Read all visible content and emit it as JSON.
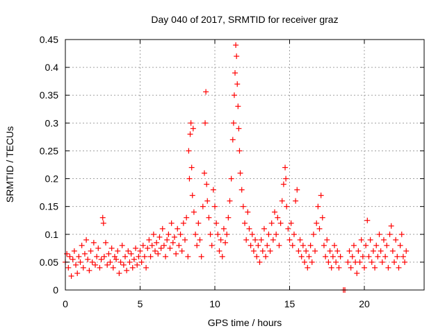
{
  "chart_data": {
    "type": "scatter",
    "title": "Day 040 of 2017, SRMTID for receiver graz",
    "xlabel": "GPS time / hours",
    "ylabel": "SRMTID / TECUs",
    "xlim": [
      0,
      24
    ],
    "ylim": [
      0,
      0.45
    ],
    "x_ticks": [
      0,
      5,
      10,
      15,
      20
    ],
    "x_tick_labels": [
      "0",
      "5",
      "10",
      "15",
      "20"
    ],
    "y_ticks": [
      0,
      0.05,
      0.1,
      0.15,
      0.2,
      0.25,
      0.3,
      0.35,
      0.4,
      0.45
    ],
    "y_tick_labels": [
      "0",
      "0.05",
      "0.1",
      "0.15",
      "0.2",
      "0.25",
      "0.3",
      "0.35",
      "0.4",
      "0.45"
    ],
    "grid": true,
    "marker": "+",
    "color": "#ff0000",
    "series": [
      {
        "name": "SRMTID",
        "points": [
          [
            0.0,
            0.05
          ],
          [
            0.1,
            0.065
          ],
          [
            0.2,
            0.04
          ],
          [
            0.3,
            0.06
          ],
          [
            0.4,
            0.025
          ],
          [
            0.5,
            0.055
          ],
          [
            0.6,
            0.07
          ],
          [
            0.7,
            0.045
          ],
          [
            0.8,
            0.03
          ],
          [
            0.9,
            0.06
          ],
          [
            1.0,
            0.05
          ],
          [
            1.1,
            0.08
          ],
          [
            1.2,
            0.04
          ],
          [
            1.3,
            0.065
          ],
          [
            1.4,
            0.09
          ],
          [
            1.5,
            0.055
          ],
          [
            1.6,
            0.035
          ],
          [
            1.7,
            0.07
          ],
          [
            1.8,
            0.05
          ],
          [
            1.9,
            0.085
          ],
          [
            2.0,
            0.045
          ],
          [
            2.1,
            0.06
          ],
          [
            2.2,
            0.075
          ],
          [
            2.3,
            0.04
          ],
          [
            2.4,
            0.055
          ],
          [
            2.5,
            0.13
          ],
          [
            2.55,
            0.12
          ],
          [
            2.6,
            0.06
          ],
          [
            2.7,
            0.085
          ],
          [
            2.8,
            0.045
          ],
          [
            2.9,
            0.065
          ],
          [
            3.0,
            0.05
          ],
          [
            3.1,
            0.075
          ],
          [
            3.2,
            0.04
          ],
          [
            3.3,
            0.06
          ],
          [
            3.4,
            0.055
          ],
          [
            3.5,
            0.07
          ],
          [
            3.6,
            0.03
          ],
          [
            3.7,
            0.05
          ],
          [
            3.8,
            0.08
          ],
          [
            3.9,
            0.045
          ],
          [
            4.0,
            0.06
          ],
          [
            4.1,
            0.035
          ],
          [
            4.2,
            0.07
          ],
          [
            4.3,
            0.05
          ],
          [
            4.4,
            0.065
          ],
          [
            4.5,
            0.04
          ],
          [
            4.6,
            0.055
          ],
          [
            4.7,
            0.075
          ],
          [
            4.8,
            0.045
          ],
          [
            4.9,
            0.06
          ],
          [
            5.0,
            0.07
          ],
          [
            5.1,
            0.05
          ],
          [
            5.2,
            0.08
          ],
          [
            5.3,
            0.06
          ],
          [
            5.4,
            0.04
          ],
          [
            5.5,
            0.075
          ],
          [
            5.6,
            0.09
          ],
          [
            5.7,
            0.06
          ],
          [
            5.8,
            0.08
          ],
          [
            5.9,
            0.1
          ],
          [
            6.0,
            0.07
          ],
          [
            6.1,
            0.085
          ],
          [
            6.2,
            0.065
          ],
          [
            6.3,
            0.095
          ],
          [
            6.4,
            0.075
          ],
          [
            6.5,
            0.11
          ],
          [
            6.6,
            0.08
          ],
          [
            6.7,
            0.06
          ],
          [
            6.8,
            0.09
          ],
          [
            6.9,
            0.1
          ],
          [
            7.0,
            0.075
          ],
          [
            7.1,
            0.12
          ],
          [
            7.2,
            0.085
          ],
          [
            7.3,
            0.095
          ],
          [
            7.4,
            0.065
          ],
          [
            7.5,
            0.11
          ],
          [
            7.6,
            0.08
          ],
          [
            7.7,
            0.1
          ],
          [
            7.8,
            0.07
          ],
          [
            7.9,
            0.12
          ],
          [
            8.0,
            0.09
          ],
          [
            8.1,
            0.13
          ],
          [
            8.2,
            0.06
          ],
          [
            8.25,
            0.25
          ],
          [
            8.3,
            0.2
          ],
          [
            8.35,
            0.28
          ],
          [
            8.4,
            0.3
          ],
          [
            8.45,
            0.22
          ],
          [
            8.5,
            0.17
          ],
          [
            8.55,
            0.29
          ],
          [
            8.6,
            0.14
          ],
          [
            8.7,
            0.1
          ],
          [
            8.8,
            0.08
          ],
          [
            8.9,
            0.12
          ],
          [
            9.0,
            0.09
          ],
          [
            9.1,
            0.06
          ],
          [
            9.2,
            0.15
          ],
          [
            9.3,
            0.21
          ],
          [
            9.35,
            0.3
          ],
          [
            9.4,
            0.356
          ],
          [
            9.45,
            0.19
          ],
          [
            9.5,
            0.16
          ],
          [
            9.6,
            0.13
          ],
          [
            9.7,
            0.1
          ],
          [
            9.8,
            0.08
          ],
          [
            9.9,
            0.18
          ],
          [
            10.0,
            0.15
          ],
          [
            10.1,
            0.12
          ],
          [
            10.2,
            0.1
          ],
          [
            10.3,
            0.07
          ],
          [
            10.4,
            0.09
          ],
          [
            10.5,
            0.06
          ],
          [
            10.6,
            0.11
          ],
          [
            10.7,
            0.085
          ],
          [
            10.8,
            0.1
          ],
          [
            10.9,
            0.13
          ],
          [
            11.0,
            0.16
          ],
          [
            11.1,
            0.2
          ],
          [
            11.2,
            0.27
          ],
          [
            11.25,
            0.3
          ],
          [
            11.3,
            0.35
          ],
          [
            11.35,
            0.39
          ],
          [
            11.4,
            0.44
          ],
          [
            11.45,
            0.42
          ],
          [
            11.5,
            0.37
          ],
          [
            11.55,
            0.33
          ],
          [
            11.6,
            0.29
          ],
          [
            11.65,
            0.25
          ],
          [
            11.7,
            0.21
          ],
          [
            11.8,
            0.18
          ],
          [
            11.9,
            0.15
          ],
          [
            12.0,
            0.12
          ],
          [
            12.1,
            0.09
          ],
          [
            12.2,
            0.14
          ],
          [
            12.3,
            0.11
          ],
          [
            12.4,
            0.08
          ],
          [
            12.5,
            0.1
          ],
          [
            12.6,
            0.07
          ],
          [
            12.7,
            0.09
          ],
          [
            12.8,
            0.06
          ],
          [
            12.9,
            0.08
          ],
          [
            13.0,
            0.05
          ],
          [
            13.1,
            0.09
          ],
          [
            13.2,
            0.07
          ],
          [
            13.3,
            0.11
          ],
          [
            13.4,
            0.06
          ],
          [
            13.5,
            0.08
          ],
          [
            13.6,
            0.1
          ],
          [
            13.7,
            0.07
          ],
          [
            13.8,
            0.12
          ],
          [
            13.9,
            0.09
          ],
          [
            14.0,
            0.14
          ],
          [
            14.1,
            0.1
          ],
          [
            14.2,
            0.13
          ],
          [
            14.3,
            0.08
          ],
          [
            14.4,
            0.12
          ],
          [
            14.5,
            0.16
          ],
          [
            14.6,
            0.19
          ],
          [
            14.7,
            0.22
          ],
          [
            14.75,
            0.2
          ],
          [
            14.8,
            0.15
          ],
          [
            14.9,
            0.11
          ],
          [
            15.0,
            0.09
          ],
          [
            15.1,
            0.12
          ],
          [
            15.2,
            0.08
          ],
          [
            15.3,
            0.1
          ],
          [
            15.4,
            0.16
          ],
          [
            15.5,
            0.18
          ],
          [
            15.6,
            0.07
          ],
          [
            15.7,
            0.09
          ],
          [
            15.8,
            0.06
          ],
          [
            15.9,
            0.08
          ],
          [
            16.0,
            0.05
          ],
          [
            16.1,
            0.07
          ],
          [
            16.2,
            0.04
          ],
          [
            16.3,
            0.06
          ],
          [
            16.4,
            0.08
          ],
          [
            16.5,
            0.05
          ],
          [
            16.6,
            0.1
          ],
          [
            16.7,
            0.07
          ],
          [
            16.8,
            0.12
          ],
          [
            16.9,
            0.15
          ],
          [
            17.0,
            0.11
          ],
          [
            17.1,
            0.17
          ],
          [
            17.2,
            0.13
          ],
          [
            17.3,
            0.08
          ],
          [
            17.4,
            0.06
          ],
          [
            17.5,
            0.09
          ],
          [
            17.6,
            0.05
          ],
          [
            17.7,
            0.07
          ],
          [
            17.8,
            0.04
          ],
          [
            17.9,
            0.06
          ],
          [
            18.0,
            0.08
          ],
          [
            18.1,
            0.05
          ],
          [
            18.2,
            0.07
          ],
          [
            18.3,
            0.04
          ],
          [
            18.4,
            0.06
          ],
          [
            18.6,
            0.0
          ],
          [
            18.7,
            0.0
          ],
          [
            18.9,
            0.05
          ],
          [
            19.0,
            0.07
          ],
          [
            19.1,
            0.04
          ],
          [
            19.2,
            0.06
          ],
          [
            19.3,
            0.08
          ],
          [
            19.4,
            0.05
          ],
          [
            19.5,
            0.03
          ],
          [
            19.6,
            0.07
          ],
          [
            19.7,
            0.05
          ],
          [
            19.8,
            0.09
          ],
          [
            19.9,
            0.06
          ],
          [
            20.0,
            0.04
          ],
          [
            20.1,
            0.08
          ],
          [
            20.2,
            0.125
          ],
          [
            20.3,
            0.06
          ],
          [
            20.4,
            0.09
          ],
          [
            20.5,
            0.05
          ],
          [
            20.6,
            0.07
          ],
          [
            20.7,
            0.04
          ],
          [
            20.8,
            0.08
          ],
          [
            20.9,
            0.06
          ],
          [
            21.0,
            0.1
          ],
          [
            21.1,
            0.07
          ],
          [
            21.2,
            0.05
          ],
          [
            21.3,
            0.09
          ],
          [
            21.4,
            0.06
          ],
          [
            21.5,
            0.08
          ],
          [
            21.6,
            0.04
          ],
          [
            21.7,
            0.1
          ],
          [
            21.8,
            0.115
          ],
          [
            21.9,
            0.07
          ],
          [
            22.0,
            0.05
          ],
          [
            22.1,
            0.09
          ],
          [
            22.2,
            0.06
          ],
          [
            22.3,
            0.04
          ],
          [
            22.4,
            0.08
          ],
          [
            22.5,
            0.1
          ],
          [
            22.6,
            0.06
          ],
          [
            22.7,
            0.05
          ],
          [
            22.8,
            0.07
          ]
        ]
      }
    ]
  }
}
